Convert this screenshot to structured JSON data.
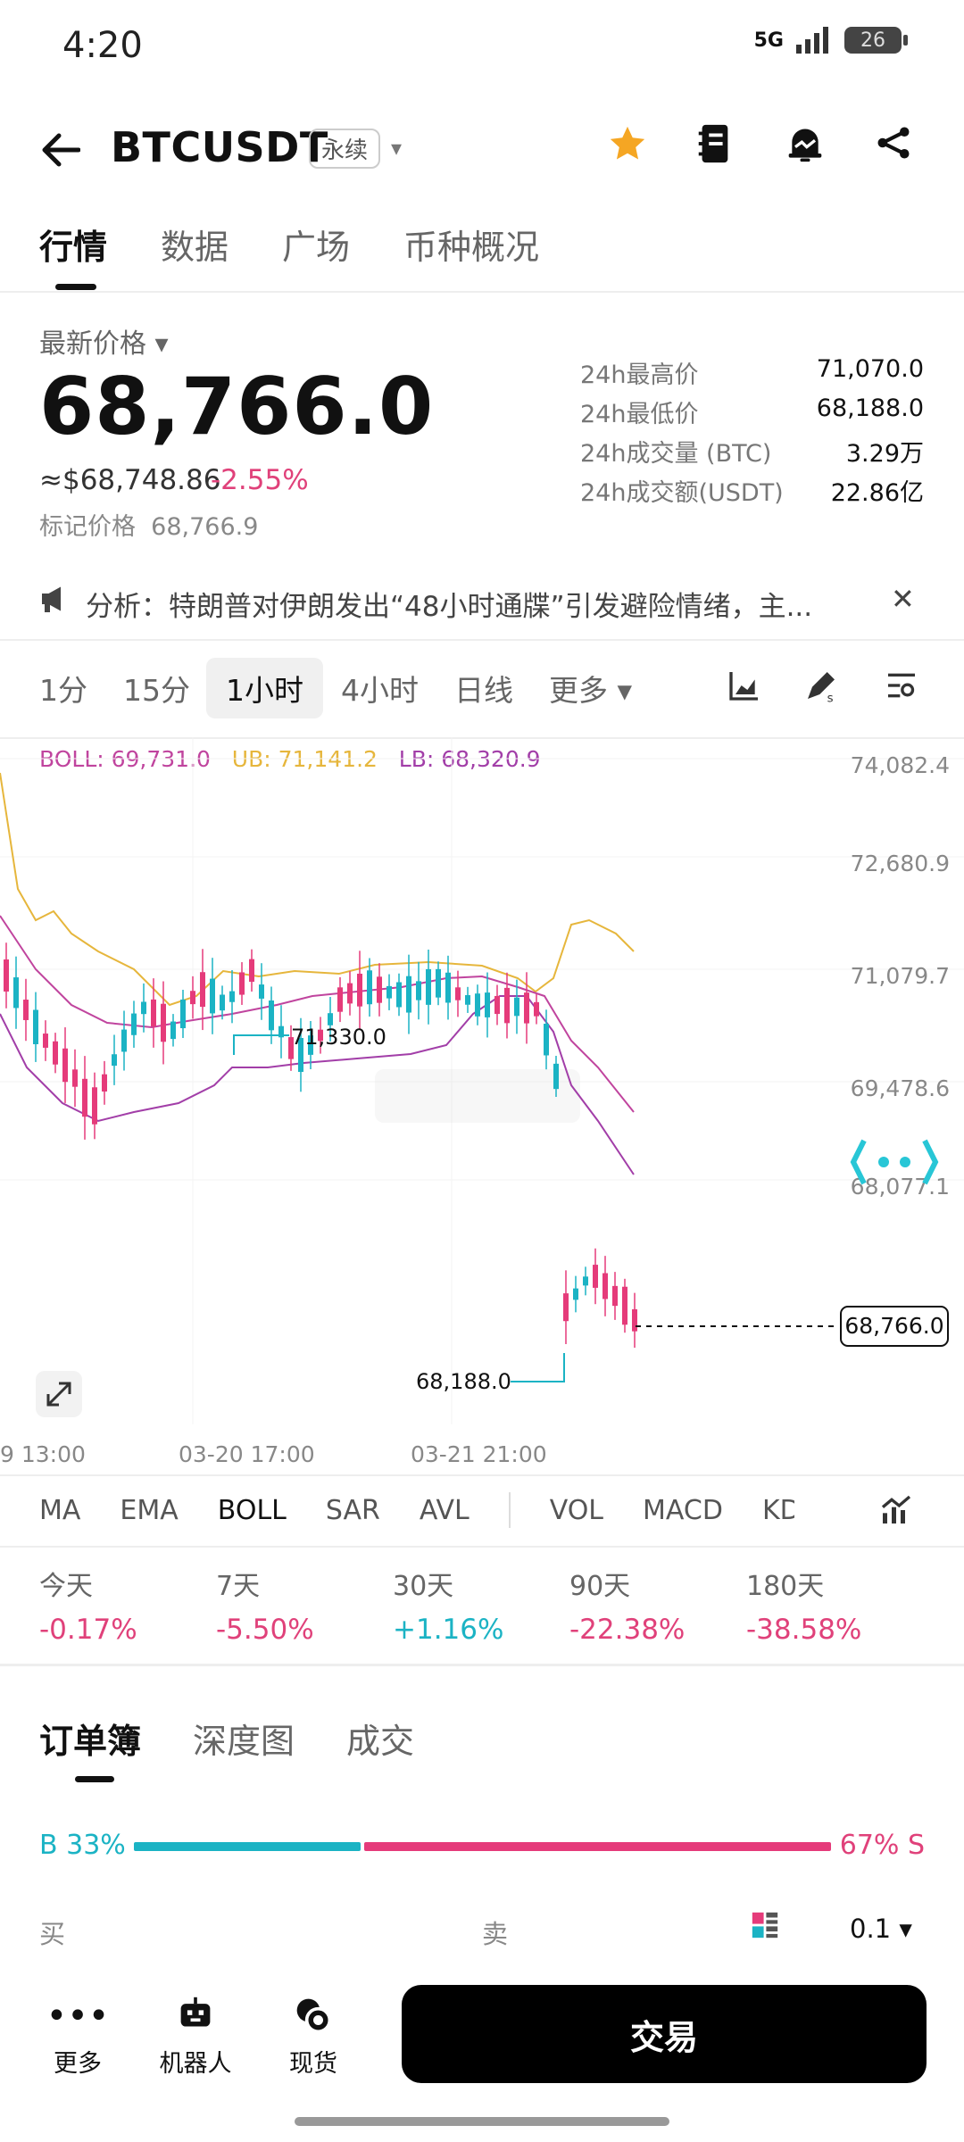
{
  "status_bar": {
    "time": "4:20",
    "network": "5G",
    "battery": "26"
  },
  "header": {
    "back_icon": "arrow-left-icon",
    "symbol": "BTCUSDT",
    "contract_badge": "永续",
    "caret": "▾"
  },
  "tabs": [
    {
      "label": "行情"
    },
    {
      "label": "数据"
    },
    {
      "label": "广场"
    },
    {
      "label": "币种概况"
    }
  ],
  "price": {
    "latest_label": "最新价格 ▾",
    "latest": "68,766.0",
    "usd_equiv": "≈$68,748.86",
    "change": "-2.55%",
    "mark_label": "标记价格",
    "mark_value": "68,766.9"
  },
  "stats": [
    {
      "k": "24h最高价",
      "v": "71,070.0"
    },
    {
      "k": "24h最低价",
      "v": "68,188.0"
    },
    {
      "k": "24h成交量 (BTC)",
      "v": "3.29万"
    },
    {
      "k": "24h成交额(USDT)",
      "v": "22.86亿"
    }
  ],
  "news": {
    "text": "分析：特朗普对伊朗发出“48小时通牒”引发避险情绪，主..."
  },
  "intervals": [
    {
      "label": "1分"
    },
    {
      "label": "15分"
    },
    {
      "label": "1小时"
    },
    {
      "label": "4小时"
    },
    {
      "label": "日线"
    },
    {
      "label": "更多 ▾"
    }
  ],
  "chart_indicator": {
    "boll": "BOLL: 69,731.0",
    "ub": "UB: 71,141.2",
    "lb": "LB: 68,320.9"
  },
  "chart_data": {
    "type": "candlestick",
    "y_ticks": [
      "74,082.4",
      "72,680.9",
      "71,079.7",
      "69,478.6",
      "68,077.1"
    ],
    "x_ticks": [
      "9 13:00",
      "03-20 17:00",
      "03-21 21:00"
    ],
    "current_price": "68,766.0",
    "annotations": {
      "high": "71,330.0",
      "low": "68,188.0"
    },
    "ylim": [
      68077.1,
      74082.4
    ]
  },
  "indicator_tabs": [
    {
      "label": "MA"
    },
    {
      "label": "EMA"
    },
    {
      "label": "BOLL"
    },
    {
      "label": "SAR"
    },
    {
      "label": "AVL"
    },
    {
      "label": "VOL"
    },
    {
      "label": "MACD"
    },
    {
      "label": "KD"
    }
  ],
  "performance": [
    {
      "k": "今天",
      "v": "-0.17%"
    },
    {
      "k": "7天",
      "v": "-5.50%"
    },
    {
      "k": "30天",
      "v": "+1.16%"
    },
    {
      "k": "90天",
      "v": "-22.38%"
    },
    {
      "k": "180天",
      "v": "-38.58%"
    }
  ],
  "orderbook": {
    "tabs": [
      {
        "label": "订单簿"
      },
      {
        "label": "深度图"
      },
      {
        "label": "成交"
      }
    ],
    "buy_pct": "B 33%",
    "sell_pct": "67% S",
    "buy_fraction": 0.33,
    "buy_header": "买",
    "sell_header": "卖",
    "precision": "0.1 ▾"
  },
  "bottom_nav": [
    {
      "label": "更多"
    },
    {
      "label": "机器人"
    },
    {
      "label": "现货"
    }
  ],
  "trade_button": "交易",
  "colors": {
    "up": "#1bb3c4",
    "down": "#e53b7a",
    "ub": "#e6b63c",
    "lb": "#a23ea8"
  }
}
